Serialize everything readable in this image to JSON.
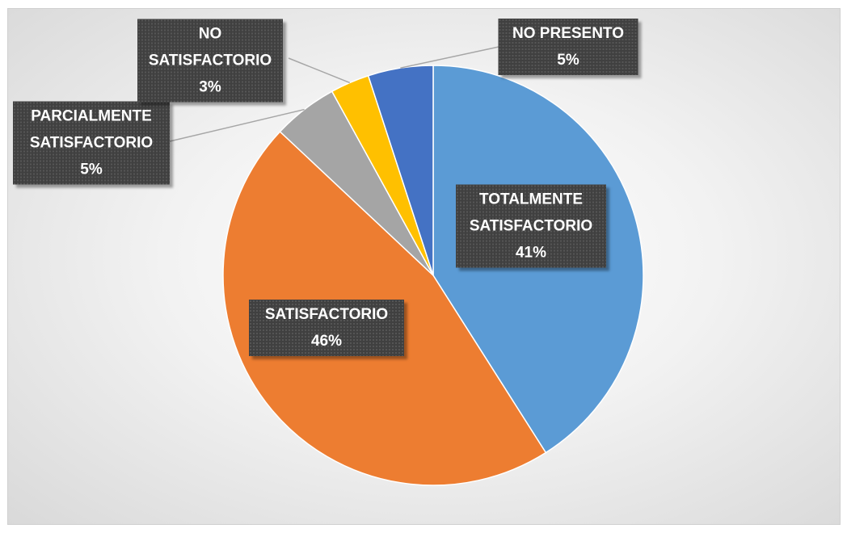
{
  "chart_data": {
    "type": "pie",
    "categories": [
      "TOTALMENTE SATISFACTORIO",
      "SATISFACTORIO",
      "PARCIALMENTE SATISFACTORIO",
      "NO SATISFACTORIO",
      "NO PRESENTO"
    ],
    "values": [
      41,
      46,
      5,
      3,
      5
    ],
    "value_labels": [
      "41%",
      "46%",
      "5%",
      "3%",
      "5%"
    ],
    "colors": [
      "#5b9bd5",
      "#ed7d31",
      "#a5a5a5",
      "#ffc000",
      "#4472c4"
    ]
  }
}
